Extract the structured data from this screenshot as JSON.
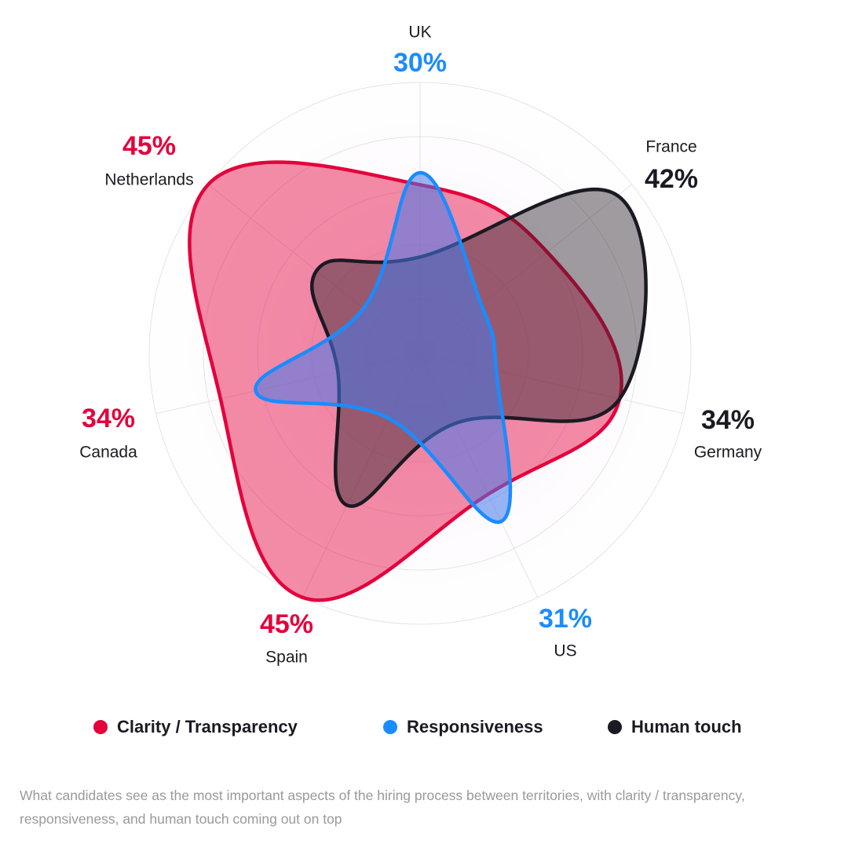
{
  "chart_data": {
    "type": "radar",
    "categories": [
      "UK",
      "France",
      "Germany",
      "US",
      "Spain",
      "Canada",
      "Netherlands"
    ],
    "series": [
      {
        "name": "Clarity / Transparency",
        "color": "#e4003b",
        "fill": "rgba(228,0,59,0.45)",
        "values": [
          28,
          27,
          34,
          26,
          45,
          34,
          45
        ],
        "value_labels": [
          null,
          null,
          null,
          null,
          "45%",
          "34%",
          "45%"
        ]
      },
      {
        "name": "Human touch",
        "color": "#1b1a22",
        "fill": "rgba(45,35,45,0.45)",
        "values": [
          16,
          42,
          34,
          13,
          28,
          14,
          22
        ],
        "value_labels": [
          null,
          "42%",
          "34%",
          null,
          null,
          null,
          null
        ]
      },
      {
        "name": "Responsiveness",
        "color": "#1a8cff",
        "fill": "rgba(70,120,235,0.55)",
        "values": [
          30,
          13,
          13,
          31,
          12,
          28,
          12
        ],
        "value_labels": [
          "30%",
          null,
          null,
          "31%",
          null,
          null,
          null
        ]
      }
    ],
    "ylim": [
      0,
      45
    ],
    "yticks": [
      9,
      18,
      27,
      36,
      45
    ],
    "grid": true,
    "caption": "What candidates see as the most important aspects of the hiring process between territories, with clarity / transparency, responsiveness, and human touch coming out on top"
  }
}
